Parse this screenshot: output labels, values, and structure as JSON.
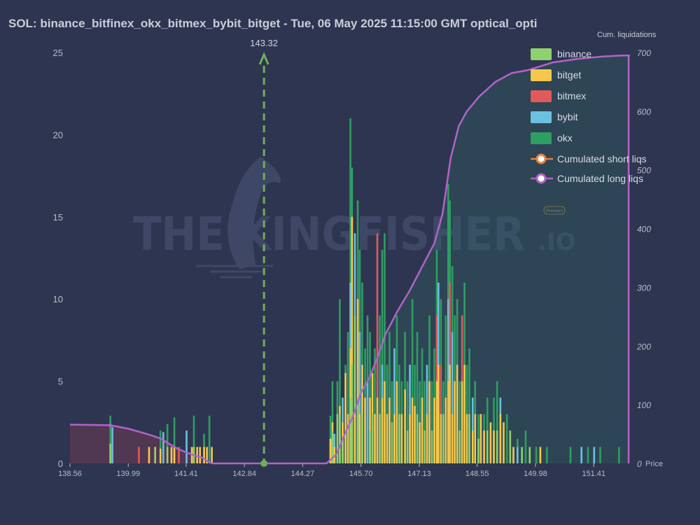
{
  "title": "SOL: binance_bitfinex_okx_bitmex_bybit_bitget - Tue, 06 May 2025 11:15:00 GMT optical_opti",
  "watermark": {
    "main": "THE  KINGFISHER",
    "suffix": ".IO",
    "badge": "Premium"
  },
  "colors": {
    "background": "#2e3550",
    "binance": "#8fd16f",
    "bitget": "#f5c84c",
    "bitmex": "#e05a5a",
    "bybit": "#6cc0e0",
    "okx": "#2e9e62",
    "short_line": "#e8813a",
    "long_line": "#b064c8",
    "price_marker": "#6fae5a"
  },
  "chart_data": {
    "type": "bar",
    "x_ticks": [
      "138.56",
      "139.99",
      "141.41",
      "142.84",
      "144.27",
      "145.70",
      "147.13",
      "148.55",
      "149.98",
      "151.41"
    ],
    "xlim": [
      138.56,
      152.3
    ],
    "y_left": {
      "ylim": [
        0,
        25
      ],
      "ticks": [
        "0",
        "5",
        "10",
        "15",
        "20",
        "25"
      ]
    },
    "y_right": {
      "label": "Cum. liquidations",
      "ylim": [
        0,
        700
      ],
      "ticks": [
        "0",
        "100",
        "200",
        "300",
        "400",
        "500",
        "600",
        "700"
      ]
    },
    "x_axis_label": "Price",
    "current_price": {
      "value": 143.32,
      "label": "143.32"
    },
    "legend": [
      "binance",
      "bitget",
      "bitmex",
      "bybit",
      "okx",
      "Cumulated short liqs",
      "Cumulated long liqs"
    ],
    "bars": [
      {
        "x": 139.55,
        "values": {
          "okx": 2.9,
          "binance": 1.2
        }
      },
      {
        "x": 139.6,
        "values": {
          "bybit": 2.2
        }
      },
      {
        "x": 140.25,
        "values": {
          "bitmex": 1.0
        }
      },
      {
        "x": 140.5,
        "values": {
          "bitget": 1.0
        }
      },
      {
        "x": 140.65,
        "values": {
          "bitget": 1.0,
          "binance": 0.9
        }
      },
      {
        "x": 140.78,
        "values": {
          "okx": 2.0,
          "bitget": 0.9
        }
      },
      {
        "x": 140.85,
        "values": {
          "bybit": 1.9
        }
      },
      {
        "x": 140.95,
        "values": {
          "okx": 2.4,
          "binance": 1.0
        }
      },
      {
        "x": 141.05,
        "values": {
          "bitget": 1.0
        }
      },
      {
        "x": 141.12,
        "values": {
          "okx": 2.8,
          "bitget": 1.0
        }
      },
      {
        "x": 141.23,
        "values": {
          "bitmex": 1.0
        }
      },
      {
        "x": 141.42,
        "values": {
          "bybit": 2.0
        }
      },
      {
        "x": 141.55,
        "values": {
          "bitget": 1.0
        }
      },
      {
        "x": 141.6,
        "values": {
          "okx": 2.9,
          "binance": 1.0
        }
      },
      {
        "x": 141.68,
        "values": {
          "bitget": 1.0
        }
      },
      {
        "x": 141.75,
        "values": {
          "bitget": 1.0
        }
      },
      {
        "x": 141.85,
        "values": {
          "okx": 1.8,
          "bitget": 1.0
        }
      },
      {
        "x": 141.92,
        "values": {
          "bitget": 1.0
        }
      },
      {
        "x": 141.98,
        "values": {
          "okx": 2.9
        }
      },
      {
        "x": 142.04,
        "values": {
          "bitget": 1.0
        }
      },
      {
        "x": 144.95,
        "values": {
          "okx": 2.9,
          "binance": 1.5,
          "bitget": 1.5
        }
      },
      {
        "x": 145.0,
        "values": {
          "okx": 5.0,
          "bitget": 2.5,
          "binance": 2.0
        }
      },
      {
        "x": 145.05,
        "values": {
          "bybit": 1.8,
          "bitget": 1.0
        }
      },
      {
        "x": 145.12,
        "values": {
          "okx": 5.0,
          "binance": 3.0
        }
      },
      {
        "x": 145.18,
        "values": {
          "okx": 10.0,
          "bitget": 3.5,
          "binance": 3.0
        }
      },
      {
        "x": 145.25,
        "values": {
          "bybit": 4.0,
          "bitget": 2.5,
          "binance": 1.5
        }
      },
      {
        "x": 145.32,
        "values": {
          "okx": 6.0,
          "bitget": 5.5
        }
      },
      {
        "x": 145.38,
        "values": {
          "okx": 8.0,
          "bitget": 3.0
        }
      },
      {
        "x": 145.44,
        "values": {
          "okx": 21.0,
          "bybit": 11.0,
          "bitget": 7.0,
          "binance": 4.0
        }
      },
      {
        "x": 145.48,
        "values": {
          "okx": 18.0,
          "bitget": 15.0,
          "binance": 6.0
        }
      },
      {
        "x": 145.55,
        "values": {
          "bybit": 14.0,
          "binance": 9.0,
          "bitget": 3.0
        }
      },
      {
        "x": 145.62,
        "values": {
          "okx": 16.0,
          "bitget": 10.0,
          "binance": 4.0
        }
      },
      {
        "x": 145.67,
        "values": {
          "okx": 13.0,
          "bybit": 8.0,
          "bitget": 3.0
        }
      },
      {
        "x": 145.73,
        "values": {
          "okx": 11.0,
          "bitget": 6.0,
          "binance": 3.0
        }
      },
      {
        "x": 145.8,
        "values": {
          "okx": 7.0,
          "bitget": 4.0
        }
      },
      {
        "x": 145.86,
        "values": {
          "okx": 9.0,
          "bybit": 5.0
        }
      },
      {
        "x": 145.92,
        "values": {
          "okx": 8.0,
          "bitget": 4.0,
          "binance": 2.0
        }
      },
      {
        "x": 145.98,
        "values": {
          "bitget": 5.5,
          "binance": 3.0
        }
      },
      {
        "x": 146.04,
        "values": {
          "okx": 7.0,
          "bitget": 3.0
        }
      },
      {
        "x": 146.1,
        "values": {
          "bitmex": 14.0,
          "bitget": 4.0
        }
      },
      {
        "x": 146.16,
        "values": {
          "okx": 9.0,
          "binance": 3.0
        }
      },
      {
        "x": 146.22,
        "values": {
          "okx": 13.0,
          "bybit": 6.0,
          "bitget": 4.0
        }
      },
      {
        "x": 146.28,
        "values": {
          "okx": 14.0,
          "bitget": 5.0
        }
      },
      {
        "x": 146.34,
        "values": {
          "okx": 6.0,
          "bitget": 3.0
        }
      },
      {
        "x": 146.4,
        "values": {
          "okx": 8.0,
          "bitget": 4.0
        }
      },
      {
        "x": 146.46,
        "values": {
          "okx": 5.0,
          "binance": 2.5
        }
      },
      {
        "x": 146.52,
        "values": {
          "bybit": 7.0,
          "bitget": 3.0
        }
      },
      {
        "x": 146.58,
        "values": {
          "okx": 9.0,
          "bitget": 5.0
        }
      },
      {
        "x": 146.64,
        "values": {
          "okx": 6.0,
          "binance": 3.0
        }
      },
      {
        "x": 146.7,
        "values": {
          "okx": 5.0,
          "bitget": 3.0
        }
      },
      {
        "x": 146.78,
        "values": {
          "okx": 8.0,
          "bitget": 4.5
        }
      },
      {
        "x": 146.84,
        "values": {
          "okx": 5.0,
          "binance": 2.0
        }
      },
      {
        "x": 146.9,
        "values": {
          "bybit": 6.0,
          "bitget": 3.0
        }
      },
      {
        "x": 146.96,
        "values": {
          "okx": 10.0,
          "bitget": 4.0
        }
      },
      {
        "x": 147.02,
        "values": {
          "okx": 6.0,
          "bitget": 3.5
        }
      },
      {
        "x": 147.08,
        "values": {
          "okx": 8.0,
          "binance": 3.0
        }
      },
      {
        "x": 147.14,
        "values": {
          "okx": 5.0,
          "bitget": 2.5
        }
      },
      {
        "x": 147.2,
        "values": {
          "okx": 7.0,
          "bitget": 4.0
        }
      },
      {
        "x": 147.26,
        "values": {
          "okx": 5.0,
          "binance": 2.0
        }
      },
      {
        "x": 147.32,
        "values": {
          "bybit": 6.0,
          "bitget": 3.0
        }
      },
      {
        "x": 147.38,
        "values": {
          "okx": 9.0,
          "bitget": 5.0
        }
      },
      {
        "x": 147.44,
        "values": {
          "okx": 5.0,
          "binance": 2.0
        }
      },
      {
        "x": 147.5,
        "values": {
          "okx": 7.0,
          "bitget": 4.0
        }
      },
      {
        "x": 147.56,
        "values": {
          "okx": 13.0,
          "bitmex": 9.0,
          "bitget": 5.0
        }
      },
      {
        "x": 147.6,
        "values": {
          "bybit": 11.0,
          "bitget": 6.0
        }
      },
      {
        "x": 147.66,
        "values": {
          "okx": 10.0,
          "bitmex": 6.0,
          "bitget": 3.0
        }
      },
      {
        "x": 147.72,
        "values": {
          "okx": 5.0,
          "binance": 3.0
        }
      },
      {
        "x": 147.78,
        "values": {
          "okx": 9.0,
          "bitget": 4.0
        }
      },
      {
        "x": 147.84,
        "values": {
          "okx": 17.0,
          "bybit": 10.0,
          "bitget": 5.0
        }
      },
      {
        "x": 147.88,
        "values": {
          "okx": 16.0,
          "bitmex": 11.0,
          "bitget": 6.0
        }
      },
      {
        "x": 147.94,
        "values": {
          "okx": 12.0,
          "bybit": 8.0,
          "bitget": 3.0
        }
      },
      {
        "x": 148.0,
        "values": {
          "okx": 9.0,
          "bitget": 5.0
        }
      },
      {
        "x": 148.06,
        "values": {
          "okx": 10.0,
          "bitget": 6.0
        }
      },
      {
        "x": 148.12,
        "values": {
          "okx": 5.0,
          "binance": 2.0
        }
      },
      {
        "x": 148.18,
        "values": {
          "bitmex": 9.0,
          "bitget": 5.0
        }
      },
      {
        "x": 148.24,
        "values": {
          "okx": 11.0,
          "bitget": 6.0
        }
      },
      {
        "x": 148.3,
        "values": {
          "okx": 6.0,
          "bitget": 3.0
        }
      },
      {
        "x": 148.36,
        "values": {
          "okx": 7.0,
          "binance": 3.0
        }
      },
      {
        "x": 148.44,
        "values": {
          "bybit": 4.0,
          "bitget": 2.0
        }
      },
      {
        "x": 148.5,
        "values": {
          "okx": 5.0,
          "bitget": 3.0
        }
      },
      {
        "x": 148.58,
        "values": {
          "okx": 3.0,
          "binance": 1.5
        }
      },
      {
        "x": 148.64,
        "values": {
          "bitget": 3.0
        }
      },
      {
        "x": 148.72,
        "values": {
          "okx": 3.0,
          "bitget": 2.0
        }
      },
      {
        "x": 148.8,
        "values": {
          "okx": 4.0,
          "binance": 2.0
        }
      },
      {
        "x": 148.88,
        "values": {
          "bitget": 2.5
        }
      },
      {
        "x": 148.96,
        "values": {
          "okx": 4.0,
          "bitget": 2.0
        }
      },
      {
        "x": 149.04,
        "values": {
          "okx": 5.0,
          "binance": 2.0
        }
      },
      {
        "x": 149.12,
        "values": {
          "bybit": 4.0,
          "bitget": 3.0
        }
      },
      {
        "x": 149.2,
        "values": {
          "bitget": 2.5
        }
      },
      {
        "x": 149.28,
        "values": {
          "okx": 3.0
        }
      },
      {
        "x": 149.36,
        "values": {
          "binance": 2.0
        }
      },
      {
        "x": 149.44,
        "values": {
          "bitget": 1.0
        }
      },
      {
        "x": 149.54,
        "values": {
          "okx": 1.5,
          "bybit": 1.0
        }
      },
      {
        "x": 149.65,
        "values": {
          "binance": 1.0
        }
      },
      {
        "x": 149.74,
        "values": {
          "okx": 2.0
        }
      },
      {
        "x": 149.84,
        "values": {
          "binance": 1.0
        }
      },
      {
        "x": 150.0,
        "values": {
          "okx": 1.0
        }
      },
      {
        "x": 150.1,
        "values": {
          "bitget": 1.0
        }
      },
      {
        "x": 150.26,
        "values": {
          "okx": 1.0
        }
      },
      {
        "x": 150.84,
        "values": {
          "okx": 1.0
        }
      },
      {
        "x": 151.11,
        "values": {
          "bybit": 1.0
        }
      },
      {
        "x": 151.27,
        "values": {
          "okx": 1.0
        }
      },
      {
        "x": 151.42,
        "values": {
          "bybit": 1.0
        }
      },
      {
        "x": 151.57,
        "values": {
          "okx": 1.0
        }
      },
      {
        "x": 152.03,
        "values": {
          "okx": 1.0
        }
      }
    ],
    "cum_short": {
      "x": [
        138.56,
        139.55,
        140.0,
        140.5,
        140.8,
        141.0,
        141.2,
        141.4,
        141.6,
        141.8,
        141.95,
        142.05
      ],
      "y": [
        66,
        65,
        59,
        49,
        42,
        33,
        25,
        19,
        14,
        10,
        3,
        0
      ]
    },
    "cum_long": {
      "x": [
        142.05,
        144.85,
        144.95,
        145.1,
        145.3,
        145.5,
        145.7,
        145.9,
        146.1,
        146.3,
        146.6,
        146.9,
        147.2,
        147.5,
        147.7,
        147.9,
        148.1,
        148.3,
        148.6,
        149.0,
        149.4,
        149.8,
        150.4,
        151.0,
        151.6,
        152.1,
        152.3
      ],
      "y": [
        0,
        0,
        6,
        16,
        50,
        80,
        120,
        145,
        180,
        220,
        260,
        295,
        335,
        375,
        425,
        520,
        575,
        600,
        625,
        650,
        665,
        670,
        683,
        689,
        693,
        695,
        695
      ]
    }
  }
}
